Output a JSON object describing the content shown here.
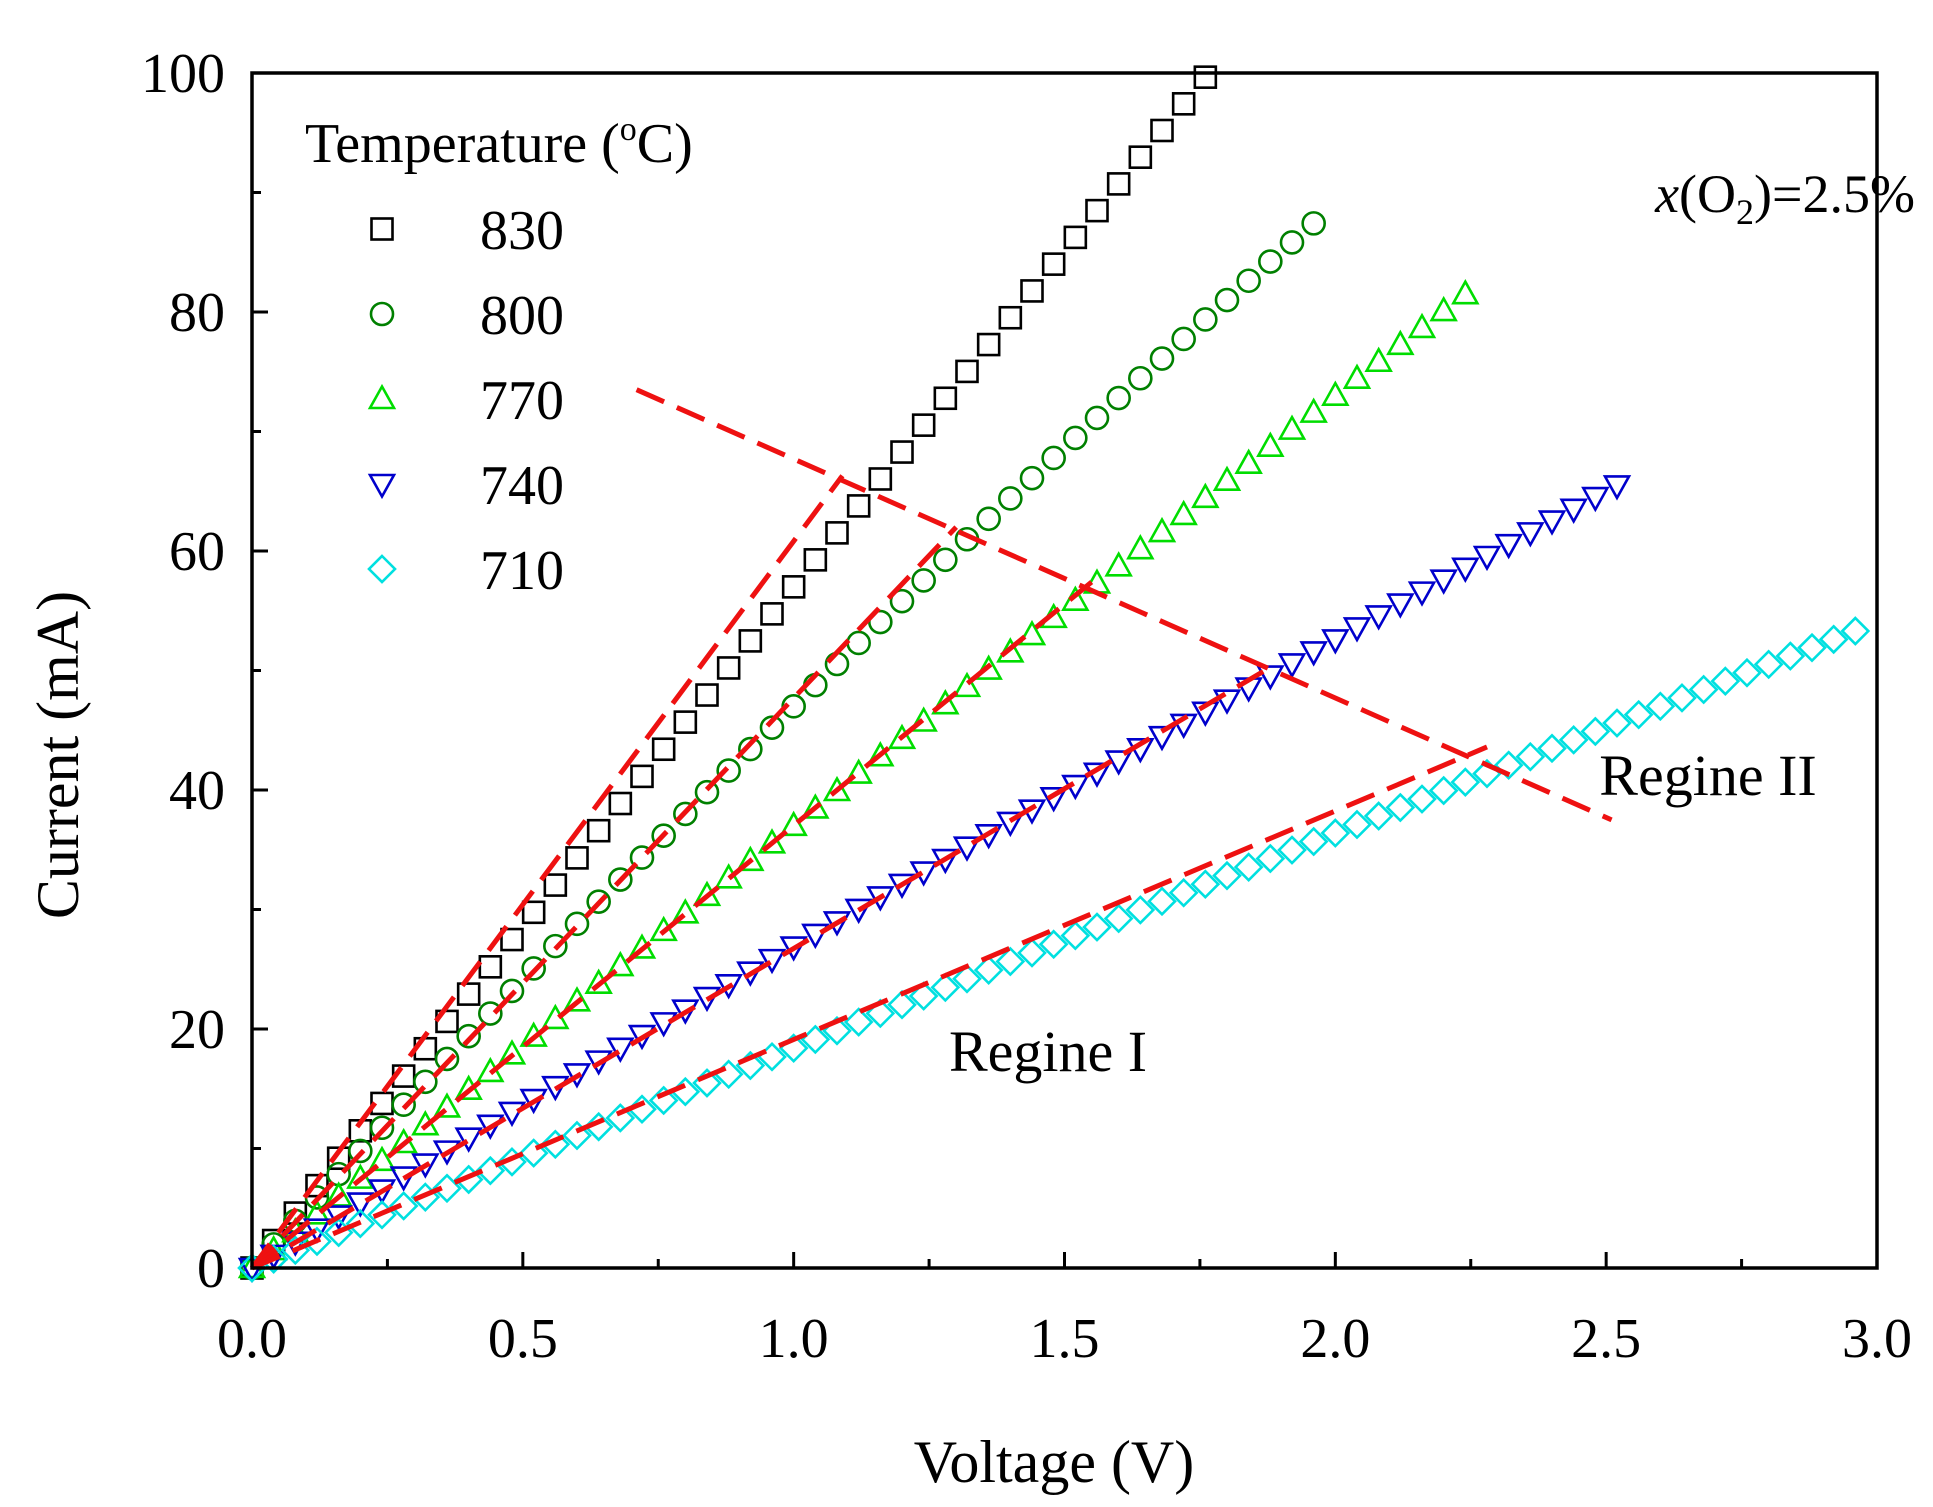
{
  "chart_data": {
    "type": "scatter",
    "xlabel": "Voltage (V)",
    "ylabel": "Current (mA)",
    "xlim": [
      0,
      3.0
    ],
    "ylim": [
      0,
      100
    ],
    "xticks": [
      "0.0",
      "0.5",
      "1.0",
      "1.5",
      "2.0",
      "2.5",
      "3.0"
    ],
    "yticks": [
      "0",
      "20",
      "40",
      "60",
      "80",
      "100"
    ],
    "grid": false,
    "legend": {
      "title_main": "Temperature (",
      "title_sup": "o",
      "title_end": "C)",
      "placement": "top-left"
    },
    "annotation": {
      "var": "x",
      "open": "(O",
      "sub": "2",
      "close": ")=2.5%"
    },
    "regime_labels": [
      "Regine I",
      "Regine II"
    ],
    "series": [
      {
        "name": "830",
        "marker": "square",
        "color": "#000000",
        "slope": 57.5,
        "curv": 0.5,
        "x_max": 1.76,
        "step": 0.04
      },
      {
        "name": "800",
        "marker": "circle",
        "color": "#008000",
        "slope": 49.5,
        "curv": 2.5,
        "x_max": 1.96,
        "step": 0.04
      },
      {
        "name": "770",
        "marker": "triangle-up",
        "color": "#00dd00",
        "slope": 37.5,
        "curv": 0.5,
        "x_max": 2.24,
        "step": 0.04
      },
      {
        "name": "740",
        "marker": "triangle-down",
        "color": "#0000cc",
        "slope": 27.5,
        "curv": 0.6,
        "x_max": 2.52,
        "step": 0.04
      },
      {
        "name": "710",
        "marker": "diamond",
        "color": "#00e0e0",
        "slope": 18.6,
        "curv": 0.2,
        "x_max": 2.96,
        "step": 0.04
      }
    ],
    "fit_lines": [
      {
        "series": "830",
        "x": [
          0.0,
          1.09
        ],
        "y": [
          0.0,
          66.3
        ]
      },
      {
        "series": "800",
        "x": [
          0.0,
          1.3
        ],
        "y": [
          0.0,
          62.0
        ]
      },
      {
        "series": "770",
        "x": [
          0.0,
          1.55
        ],
        "y": [
          0.0,
          57.4
        ]
      },
      {
        "series": "740",
        "x": [
          0.0,
          1.87
        ],
        "y": [
          0.0,
          50.0
        ]
      },
      {
        "series": "710",
        "x": [
          0.0,
          2.28
        ],
        "y": [
          0.0,
          43.6
        ]
      }
    ],
    "boundary_line": {
      "x": [
        0.71,
        2.51
      ],
      "y": [
        73.5,
        37.5
      ]
    },
    "colors": {
      "fit": "#ee1111",
      "axis": "#000000"
    }
  }
}
